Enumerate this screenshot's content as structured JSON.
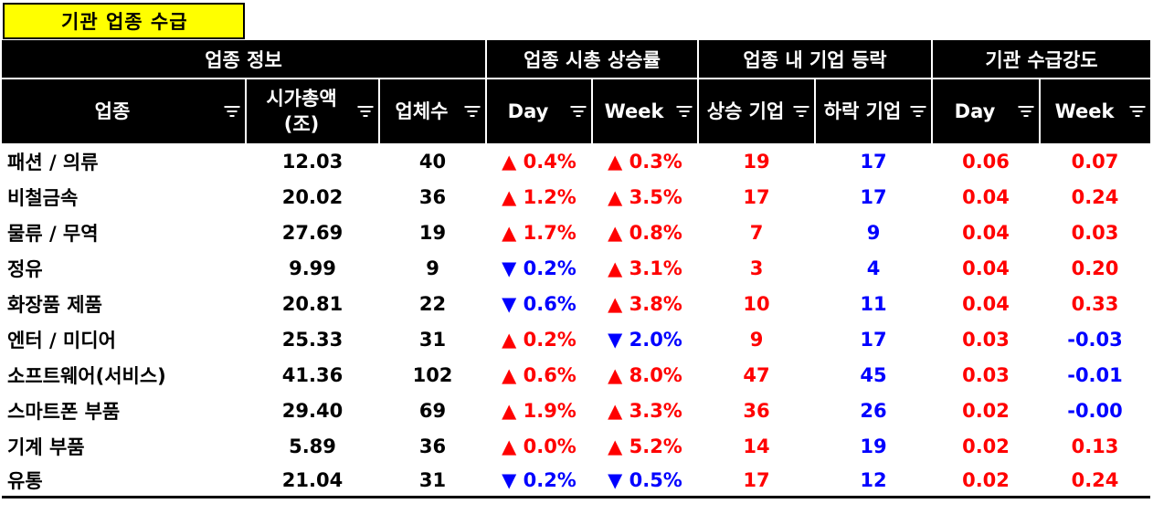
{
  "sheet_title": "기관 업종 수급",
  "groups": [
    "업종 정보",
    "업종 시총 상승률",
    "업종 내 기업 등락",
    "기관 수급강도"
  ],
  "columns": [
    {
      "label": "업종"
    },
    {
      "label": "시가총액",
      "label2": "(조)"
    },
    {
      "label": "업체수"
    },
    {
      "label": "Day"
    },
    {
      "label": "Week"
    },
    {
      "label": "상승 기업"
    },
    {
      "label": "하락 기업"
    },
    {
      "label": "Day"
    },
    {
      "label": "Week"
    }
  ],
  "symbols": {
    "up": "▲",
    "down": "▼"
  },
  "rows": [
    {
      "sector": "패션 / 의류",
      "mcap": "12.03",
      "count": "40",
      "day_dir": "up",
      "day": "0.4%",
      "week_dir": "up",
      "week": "0.3%",
      "rise": "19",
      "fall": "17",
      "inst_day": "0.06",
      "inst_week": "0.07"
    },
    {
      "sector": "비철금속",
      "mcap": "20.02",
      "count": "36",
      "day_dir": "up",
      "day": "1.2%",
      "week_dir": "up",
      "week": "3.5%",
      "rise": "17",
      "fall": "17",
      "inst_day": "0.04",
      "inst_week": "0.24"
    },
    {
      "sector": "물류 / 무역",
      "mcap": "27.69",
      "count": "19",
      "day_dir": "up",
      "day": "1.7%",
      "week_dir": "up",
      "week": "0.8%",
      "rise": "7",
      "fall": "9",
      "inst_day": "0.04",
      "inst_week": "0.03"
    },
    {
      "sector": "정유",
      "mcap": "9.99",
      "count": "9",
      "day_dir": "down",
      "day": "0.2%",
      "week_dir": "up",
      "week": "3.1%",
      "rise": "3",
      "fall": "4",
      "inst_day": "0.04",
      "inst_week": "0.20"
    },
    {
      "sector": "화장품 제품",
      "mcap": "20.81",
      "count": "22",
      "day_dir": "down",
      "day": "0.6%",
      "week_dir": "up",
      "week": "3.8%",
      "rise": "10",
      "fall": "11",
      "inst_day": "0.04",
      "inst_week": "0.33"
    },
    {
      "sector": "엔터 / 미디어",
      "mcap": "25.33",
      "count": "31",
      "day_dir": "up",
      "day": "0.2%",
      "week_dir": "down",
      "week": "2.0%",
      "rise": "9",
      "fall": "17",
      "inst_day": "0.03",
      "inst_week": "-0.03"
    },
    {
      "sector": "소프트웨어(서비스)",
      "mcap": "41.36",
      "count": "102",
      "day_dir": "up",
      "day": "0.6%",
      "week_dir": "up",
      "week": "8.0%",
      "rise": "47",
      "fall": "45",
      "inst_day": "0.03",
      "inst_week": "-0.01"
    },
    {
      "sector": "스마트폰 부품",
      "mcap": "29.40",
      "count": "69",
      "day_dir": "up",
      "day": "1.9%",
      "week_dir": "up",
      "week": "3.3%",
      "rise": "36",
      "fall": "26",
      "inst_day": "0.02",
      "inst_week": "-0.00"
    },
    {
      "sector": "기계 부품",
      "mcap": "5.89",
      "count": "36",
      "day_dir": "up",
      "day": "0.0%",
      "week_dir": "up",
      "week": "5.2%",
      "rise": "14",
      "fall": "19",
      "inst_day": "0.02",
      "inst_week": "0.13"
    },
    {
      "sector": "유통",
      "mcap": "21.04",
      "count": "31",
      "day_dir": "down",
      "day": "0.2%",
      "week_dir": "down",
      "week": "0.5%",
      "rise": "17",
      "fall": "12",
      "inst_day": "0.02",
      "inst_week": "0.24"
    }
  ],
  "colors": {
    "up": "#ff0000",
    "down": "#0000ff",
    "title_bg": "#ffff00",
    "header_bg": "#000000"
  }
}
